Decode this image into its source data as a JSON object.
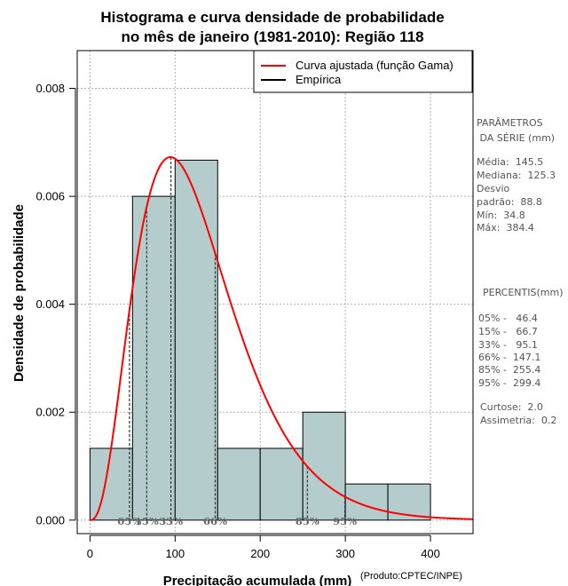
{
  "chart_data": {
    "type": "bar",
    "title_lines": [
      "Histograma e curva densidade de probabilidade",
      "no mês de janeiro (1981-2010): Região 118"
    ],
    "xlabel": "Precipitação acumulada (mm)",
    "ylabel": "Densidade de probabilidade",
    "credit": "(Produto:CPTEC/INPE)",
    "xlim": [
      -15,
      450
    ],
    "ylim": [
      -0.00025,
      0.0087
    ],
    "x_ticks": [
      0,
      100,
      200,
      300,
      400
    ],
    "x_tick_labels": [
      "0",
      "100",
      "200",
      "300",
      "400"
    ],
    "y_ticks": [
      0,
      0.002,
      0.004,
      0.006,
      0.008
    ],
    "y_tick_labels": [
      "0.000",
      "0.002",
      "0.004",
      "0.006",
      "0.008"
    ],
    "grid": true,
    "bins": [
      {
        "x0": 0,
        "x1": 50,
        "density": 0.00133
      },
      {
        "x0": 50,
        "x1": 100,
        "density": 0.006
      },
      {
        "x0": 100,
        "x1": 150,
        "density": 0.00667
      },
      {
        "x0": 150,
        "x1": 200,
        "density": 0.00133
      },
      {
        "x0": 200,
        "x1": 250,
        "density": 0.00133
      },
      {
        "x0": 250,
        "x1": 300,
        "density": 0.002
      },
      {
        "x0": 300,
        "x1": 350,
        "density": 0.00067
      },
      {
        "x0": 350,
        "x1": 400,
        "density": 0.00067
      }
    ],
    "gamma_fit": {
      "shape": 3.7,
      "scale": 35.0,
      "x_range": [
        0,
        450
      ]
    },
    "percentile_lines": [
      {
        "value": 46.4,
        "label": "05%"
      },
      {
        "value": 66.7,
        "label": "15%"
      },
      {
        "value": 95.1,
        "label": "33%"
      },
      {
        "value": 147.1,
        "label": "66%"
      },
      {
        "value": 255.4,
        "label": "85%"
      },
      {
        "value": 299.4,
        "label": "95%"
      }
    ],
    "legend": {
      "position": "top-right",
      "entries": [
        {
          "label": "Curva ajustada (função Gama)",
          "color": "#ff0000"
        },
        {
          "label": "Empírica",
          "color": "#000000"
        }
      ]
    },
    "colors": {
      "bar_fill": "#b4cccc",
      "bar_stroke": "#000000",
      "curve": "#ff0000",
      "grid": "#b0b0b0"
    }
  },
  "side_panel": {
    "params_title": [
      "PARÂMETROS",
      " DA SÉRIE (mm)"
    ],
    "params": [
      "Média:  145.5",
      "Mediana:  125.3",
      "Desvio",
      "padrão:  88.8",
      "Mín:  34.8",
      "Máx:  384.4"
    ],
    "percentis_title": "PERCENTIS(mm)",
    "percentis": [
      "05% -   46.4",
      "15% -   66.7",
      "33% -   95.1",
      "66% -  147.1",
      "85% -  255.4",
      "95% -  299.4"
    ],
    "stats": [
      "Curtose:  2.0",
      "Assimetria:  0.2"
    ]
  }
}
